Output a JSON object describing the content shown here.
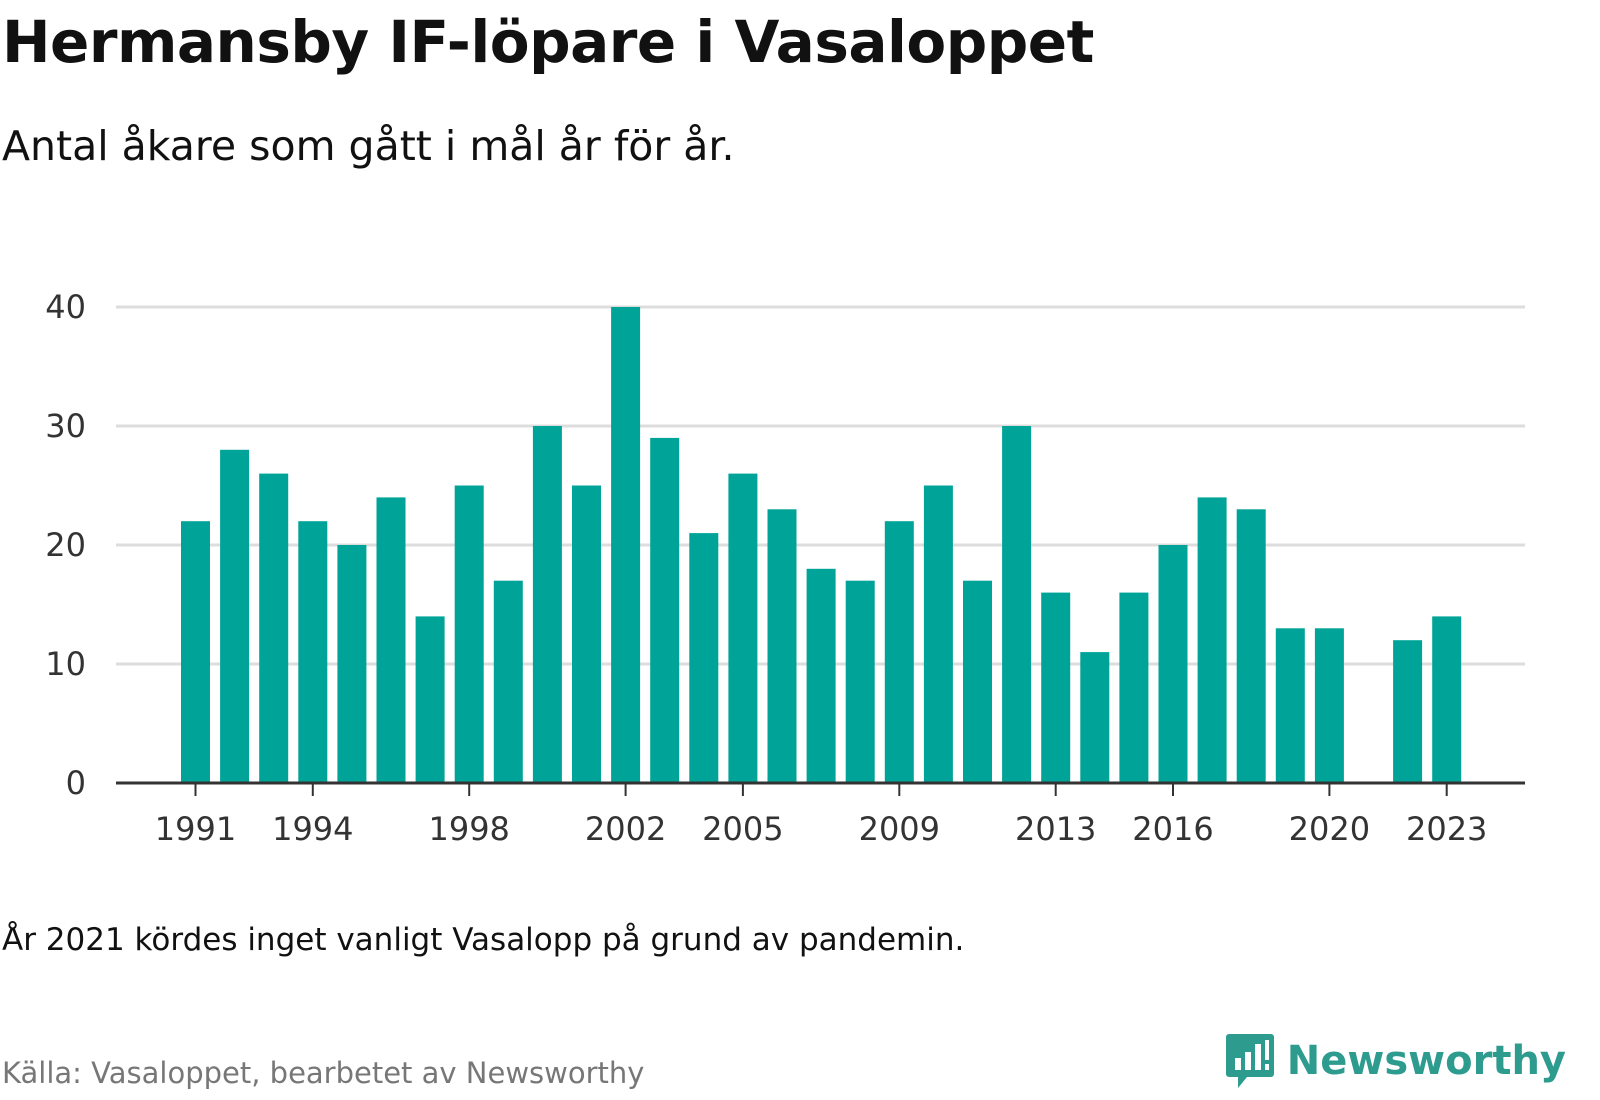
{
  "title": "Hermansby IF-löpare i Vasaloppet",
  "subtitle": "Antal åkare som gått i mål år för år.",
  "note": "År 2021 kördes inget vanligt Vasalopp på grund av pandemin.",
  "source": "Källa: Vasaloppet, bearbetet av Newsworthy",
  "brand": {
    "name": "Newsworthy",
    "icon": "newsworthy-logo-icon",
    "color": "#2e9b8f"
  },
  "colors": {
    "bar": "#00a398",
    "grid": "#dddddd",
    "axis": "#333333"
  },
  "chart_data": {
    "type": "bar",
    "title": "",
    "xlabel": "",
    "ylabel": "",
    "ylim": [
      0,
      40
    ],
    "yticks": [
      0,
      10,
      20,
      30,
      40
    ],
    "xticks": [
      1991,
      1994,
      1998,
      2002,
      2005,
      2009,
      2013,
      2016,
      2020,
      2023
    ],
    "grid": true,
    "legend": false,
    "categories": [
      1991,
      1992,
      1993,
      1994,
      1995,
      1996,
      1997,
      1998,
      1999,
      2000,
      2001,
      2002,
      2003,
      2004,
      2005,
      2006,
      2007,
      2008,
      2009,
      2010,
      2011,
      2012,
      2013,
      2014,
      2015,
      2016,
      2017,
      2018,
      2019,
      2020,
      2021,
      2022,
      2023
    ],
    "values": [
      22,
      28,
      26,
      22,
      20,
      24,
      14,
      25,
      17,
      30,
      25,
      40,
      29,
      21,
      26,
      23,
      18,
      17,
      22,
      25,
      17,
      30,
      16,
      11,
      16,
      20,
      24,
      23,
      13,
      13,
      null,
      12,
      14
    ]
  }
}
